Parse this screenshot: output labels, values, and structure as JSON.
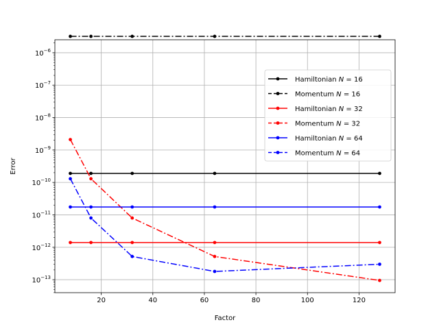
{
  "chart_data": {
    "type": "line",
    "title": "",
    "xlabel": "Factor",
    "ylabel": "Error",
    "yscale": "log",
    "xlim": [
      2,
      134
    ],
    "ylim_log10": [
      -13.4,
      -5.6
    ],
    "grid": true,
    "legend_position": "right",
    "x_ticks": [
      20,
      40,
      60,
      80,
      100,
      120
    ],
    "x_tick_labels": [
      "20",
      "40",
      "60",
      "80",
      "100",
      "120"
    ],
    "y_tick_exponents": [
      -13,
      -12,
      -11,
      -10,
      -9,
      -8,
      -7,
      -6
    ],
    "y_tick_base": "10",
    "x": [
      8,
      16,
      32,
      64,
      128
    ],
    "series": [
      {
        "name": "Hamiltonian",
        "n_label": "N = 16",
        "color": "#000000",
        "linestyle": "solid",
        "values": [
          1.9e-10,
          1.9e-10,
          1.9e-10,
          1.9e-10,
          1.9e-10
        ]
      },
      {
        "name": "Momentum",
        "n_label": "N = 16",
        "color": "#000000",
        "linestyle": "dashdot",
        "values": [
          3.2e-06,
          3.2e-06,
          3.2e-06,
          3.2e-06,
          3.2e-06
        ]
      },
      {
        "name": "Hamiltonian",
        "n_label": "N = 32",
        "color": "#ff0000",
        "linestyle": "solid",
        "values": [
          1.4e-12,
          1.4e-12,
          1.4e-12,
          1.4e-12,
          1.4e-12
        ]
      },
      {
        "name": "Momentum",
        "n_label": "N = 32",
        "color": "#ff0000",
        "linestyle": "dashdot",
        "values": [
          2.1e-09,
          1.3e-10,
          8e-12,
          5.2e-13,
          9.5e-14
        ]
      },
      {
        "name": "Hamiltonian",
        "n_label": "N = 64",
        "color": "#0000ff",
        "linestyle": "solid",
        "values": [
          1.75e-11,
          1.75e-11,
          1.75e-11,
          1.75e-11,
          1.75e-11
        ]
      },
      {
        "name": "Momentum",
        "n_label": "N = 64",
        "color": "#0000ff",
        "linestyle": "dashdot",
        "values": [
          1.3e-10,
          8e-12,
          5.2e-13,
          1.8e-13,
          3e-13
        ]
      }
    ],
    "legend_entries": [
      {
        "name": "Hamiltonian",
        "n_label": "N = 16",
        "color": "#000000",
        "linestyle": "solid"
      },
      {
        "name": "Momentum",
        "n_label": "N = 16",
        "color": "#000000",
        "linestyle": "dashed"
      },
      {
        "name": "Hamiltonian",
        "n_label": "N = 32",
        "color": "#ff0000",
        "linestyle": "solid"
      },
      {
        "name": "Momentum",
        "n_label": "N = 32",
        "color": "#ff0000",
        "linestyle": "dashed"
      },
      {
        "name": "Hamiltonian",
        "n_label": "N = 64",
        "color": "#0000ff",
        "linestyle": "solid"
      },
      {
        "name": "Momentum",
        "n_label": "N = 64",
        "color": "#0000ff",
        "linestyle": "dashed"
      }
    ]
  }
}
